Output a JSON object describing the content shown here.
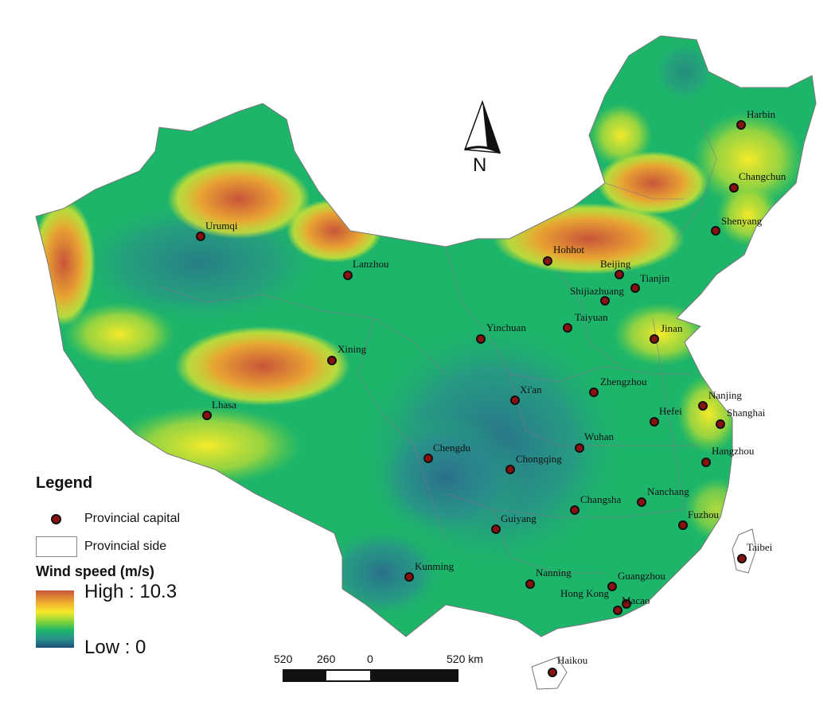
{
  "legend": {
    "title": "Legend",
    "capital_label": "Provincial capital",
    "side_label": "Provincial side",
    "wind_title": "Wind speed (m/s)",
    "high_label": "High : 10.3",
    "low_label": "Low : 0",
    "colors": {
      "high": "#c9543a",
      "mid": "#f5ea2a",
      "green": "#1db56a",
      "low": "#1e4f7a"
    }
  },
  "north_arrow": {
    "label": "N"
  },
  "scale_bar": {
    "ticks": [
      "520",
      "260",
      "0",
      "520 km"
    ]
  },
  "cities": [
    "Harbin",
    "Changchun",
    "Shenyang",
    "Hohhot",
    "Beijing",
    "Tianjin",
    "Shijiazhuang",
    "Taiyuan",
    "Jinan",
    "Urumqi",
    "Lanzhou",
    "Yinchuan",
    "Xining",
    "Lhasa",
    "Xi'an",
    "Zhengzhou",
    "Nanjing",
    "Shanghai",
    "Hefei",
    "Wuhan",
    "Chengdu",
    "Chongqing",
    "Hangzhou",
    "Changsha",
    "Nanchang",
    "Guiyang",
    "Fuzhou",
    "Taibei",
    "Kunming",
    "Nanning",
    "Guangzhou",
    "Hong Kong",
    "Macao",
    "Haikou"
  ]
}
